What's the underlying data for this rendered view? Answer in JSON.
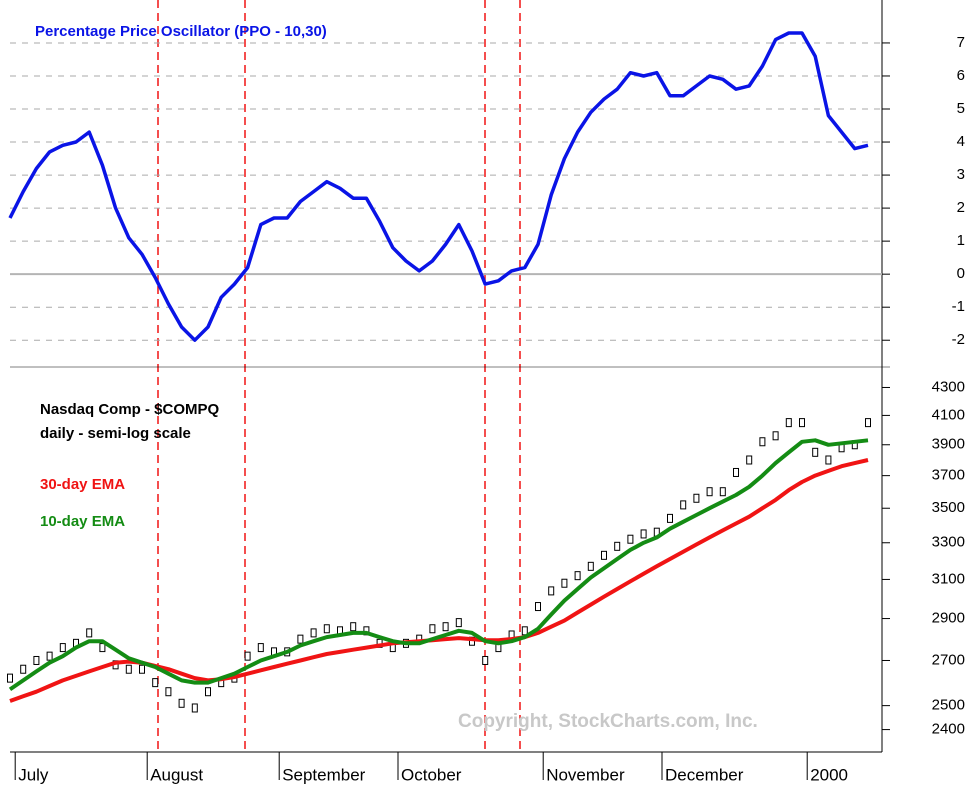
{
  "chart_data": [
    {
      "type": "line",
      "title": "Percentage Price Oscillator (PPO - 10,30)",
      "series": [
        {
          "color": "#0a14e6",
          "values": [
            1.7,
            2.5,
            3.2,
            3.7,
            3.9,
            4.0,
            4.3,
            3.3,
            2.0,
            1.1,
            0.6,
            -0.1,
            -0.9,
            -1.6,
            -2.0,
            -1.6,
            -0.7,
            -0.3,
            0.2,
            1.5,
            1.7,
            1.7,
            2.2,
            2.5,
            2.8,
            2.6,
            2.3,
            2.3,
            1.6,
            0.8,
            0.4,
            0.1,
            0.4,
            0.9,
            1.5,
            0.7,
            -0.3,
            -0.2,
            0.1,
            0.2,
            0.9,
            2.4,
            3.5,
            4.3,
            4.9,
            5.3,
            5.6,
            6.1,
            6.0,
            6.1,
            5.4,
            5.4,
            5.7,
            6.0,
            5.9,
            5.6,
            5.7,
            6.3,
            7.1,
            7.3,
            7.3,
            6.6,
            4.8,
            4.3,
            3.8,
            3.9
          ]
        }
      ],
      "ylim": [
        -2.75,
        8.3
      ],
      "yticks": [
        -2,
        -1,
        0,
        1,
        2,
        3,
        4,
        5,
        6,
        7
      ],
      "grid": true
    },
    {
      "type": "line",
      "title": "Nasdaq Comp - $COMPQ",
      "subtitle": "daily - semi-log scale",
      "log_scale": true,
      "categories": [
        null,
        "July",
        null,
        null,
        null,
        null,
        null,
        null,
        null,
        null,
        null,
        "August",
        null,
        null,
        null,
        null,
        null,
        null,
        null,
        null,
        null,
        "September",
        null,
        null,
        null,
        null,
        null,
        null,
        null,
        null,
        "October",
        null,
        null,
        null,
        null,
        null,
        null,
        null,
        null,
        null,
        null,
        "November",
        null,
        null,
        null,
        null,
        null,
        null,
        null,
        null,
        "December",
        null,
        null,
        null,
        null,
        null,
        null,
        null,
        null,
        null,
        null,
        "2000",
        null,
        null,
        null,
        null
      ],
      "series": [
        {
          "name": "Nasdaq Comp - $COMPQ",
          "color": "#000000",
          "style": "marker",
          "values": [
            2620,
            2660,
            2700,
            2720,
            2760,
            2780,
            2830,
            2760,
            2680,
            2660,
            2660,
            2600,
            2560,
            2510,
            2490,
            2560,
            2600,
            2620,
            2720,
            2760,
            2740,
            2740,
            2800,
            2830,
            2850,
            2840,
            2860,
            2840,
            2780,
            2760,
            2780,
            2800,
            2850,
            2860,
            2880,
            2790,
            2700,
            2760,
            2820,
            2840,
            2960,
            3040,
            3080,
            3120,
            3170,
            3230,
            3280,
            3320,
            3350,
            3360,
            3440,
            3520,
            3560,
            3600,
            3600,
            3720,
            3800,
            3920,
            3960,
            4050,
            4050,
            3850,
            3800,
            3880,
            3900,
            4050
          ]
        },
        {
          "name": "30-day EMA",
          "color": "#f01414",
          "values": [
            2520,
            2540,
            2560,
            2585,
            2610,
            2630,
            2650,
            2670,
            2690,
            2695,
            2690,
            2675,
            2660,
            2640,
            2620,
            2610,
            2615,
            2625,
            2640,
            2655,
            2670,
            2685,
            2700,
            2715,
            2730,
            2740,
            2750,
            2760,
            2770,
            2780,
            2785,
            2790,
            2795,
            2800,
            2805,
            2800,
            2795,
            2795,
            2800,
            2810,
            2830,
            2860,
            2890,
            2930,
            2970,
            3010,
            3050,
            3090,
            3130,
            3170,
            3210,
            3250,
            3290,
            3330,
            3370,
            3410,
            3450,
            3500,
            3550,
            3610,
            3660,
            3700,
            3730,
            3760,
            3780,
            3800
          ]
        },
        {
          "name": "10-day EMA",
          "color": "#148c14",
          "values": [
            2570,
            2610,
            2650,
            2690,
            2720,
            2760,
            2790,
            2790,
            2750,
            2710,
            2690,
            2670,
            2640,
            2610,
            2600,
            2600,
            2620,
            2640,
            2670,
            2700,
            2720,
            2740,
            2770,
            2790,
            2810,
            2820,
            2830,
            2830,
            2810,
            2790,
            2780,
            2780,
            2800,
            2820,
            2840,
            2830,
            2790,
            2780,
            2790,
            2810,
            2850,
            2920,
            2990,
            3050,
            3110,
            3160,
            3210,
            3260,
            3300,
            3330,
            3380,
            3420,
            3460,
            3500,
            3540,
            3580,
            3630,
            3700,
            3780,
            3850,
            3920,
            3930,
            3900,
            3910,
            3920,
            3930
          ]
        }
      ],
      "ylim": [
        2310,
        4430
      ],
      "yticks": [
        2400,
        2500,
        2700,
        2900,
        3100,
        3300,
        3500,
        3700,
        3900,
        4100,
        4300
      ],
      "annotations": [
        "Copyright, StockCharts.com, Inc."
      ]
    }
  ]
}
